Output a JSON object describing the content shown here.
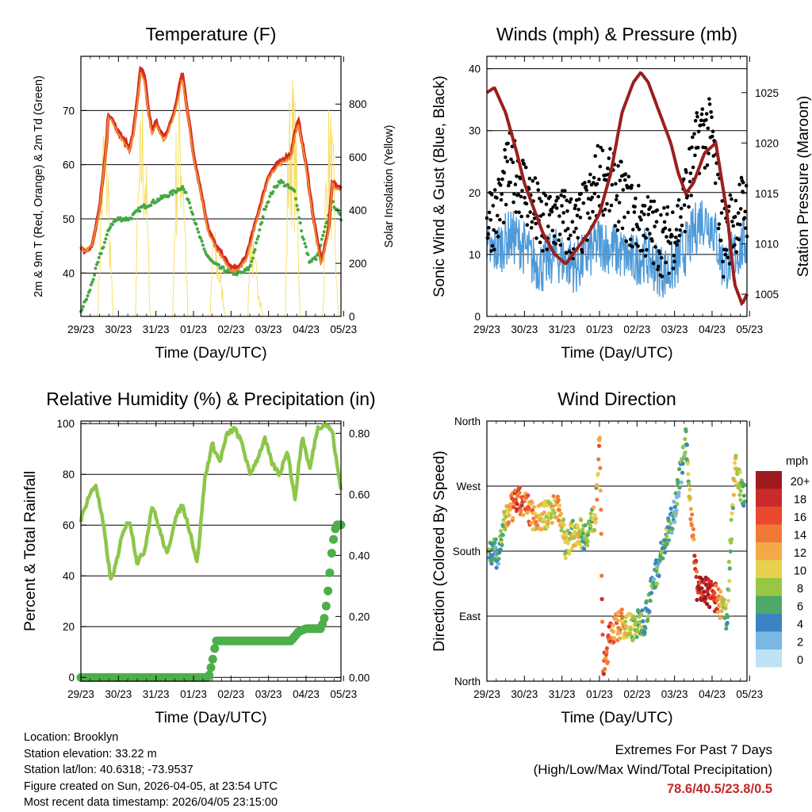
{
  "chart_data": [
    {
      "type": "line",
      "title": "Temperature (F)",
      "xlabel": "Time (Day/UTC)",
      "ylabel": "2m & 9m T (Red, Orange) & 2m Td (Green)",
      "ylabel_right": "Solar Insolation (Yellow)",
      "x_ticks": [
        "29/23",
        "30/23",
        "31/23",
        "01/23",
        "02/23",
        "03/23",
        "04/23",
        "05/23"
      ],
      "xlim": [
        0,
        6.93
      ],
      "ylim": [
        32,
        80
      ],
      "y_ticks": [
        40,
        50,
        60,
        70
      ],
      "ylim_right": [
        0,
        980
      ],
      "y_ticks_right": [
        0,
        200,
        400,
        600,
        800
      ],
      "series": [
        {
          "name": "2m T",
          "color": "#d42a20",
          "x": [
            0,
            0.1,
            0.3,
            0.5,
            0.7,
            0.72,
            0.8,
            1.0,
            1.2,
            1.3,
            1.4,
            1.6,
            1.7,
            1.8,
            1.9,
            2.0,
            2.2,
            2.3,
            2.5,
            2.7,
            2.8,
            3.0,
            3.2,
            3.4,
            3.6,
            3.8,
            4.0,
            4.2,
            4.4,
            4.6,
            4.8,
            5.0,
            5.2,
            5.4,
            5.6,
            5.7,
            5.8,
            6.0,
            6.2,
            6.4,
            6.6,
            6.7,
            6.8,
            6.93
          ],
          "values": [
            45,
            44,
            45,
            52,
            65,
            69,
            69,
            66,
            64,
            63,
            66,
            78,
            76,
            70,
            66,
            68,
            65,
            66,
            70,
            77,
            72,
            62,
            55,
            48,
            45,
            43,
            41,
            41,
            43,
            48,
            53,
            58,
            60,
            61,
            62,
            66,
            68,
            60,
            50,
            42,
            48,
            57,
            56,
            56
          ]
        },
        {
          "name": "9m T",
          "color": "#f28a30",
          "x": [
            0,
            0.1,
            0.3,
            0.5,
            0.7,
            0.72,
            0.8,
            1.0,
            1.2,
            1.3,
            1.4,
            1.6,
            1.7,
            1.8,
            1.9,
            2.0,
            2.2,
            2.3,
            2.5,
            2.7,
            2.8,
            3.0,
            3.2,
            3.4,
            3.6,
            3.8,
            4.0,
            4.2,
            4.4,
            4.6,
            4.8,
            5.0,
            5.2,
            5.4,
            5.6,
            5.7,
            5.8,
            6.0,
            6.2,
            6.4,
            6.6,
            6.7,
            6.8,
            6.93
          ],
          "values": [
            45,
            44,
            45,
            52,
            64.5,
            68.5,
            68.5,
            65.5,
            63.5,
            62.5,
            65.5,
            77,
            75,
            69.5,
            65.5,
            67.5,
            64.5,
            65.5,
            69.5,
            76,
            71.5,
            61.5,
            54.5,
            47.5,
            44.5,
            42.5,
            40.5,
            40.5,
            42.5,
            47.5,
            52.5,
            57.5,
            59.5,
            60.5,
            61.5,
            65.5,
            67.5,
            59.5,
            49.5,
            41.5,
            47.5,
            56.5,
            55.5,
            55.5
          ]
        },
        {
          "name": "2m Td",
          "color": "#44a844",
          "x": [
            0,
            0.2,
            0.5,
            0.8,
            1.0,
            1.3,
            1.6,
            1.9,
            2.2,
            2.5,
            2.7,
            2.9,
            3.1,
            3.3,
            3.5,
            3.7,
            4.0,
            4.3,
            4.5,
            4.7,
            4.9,
            5.1,
            5.3,
            5.5,
            5.7,
            5.9,
            6.1,
            6.3,
            6.5,
            6.7,
            6.8,
            6.93
          ],
          "values": [
            33,
            36,
            43,
            49,
            50,
            50,
            52,
            53,
            54,
            55,
            56,
            53,
            48,
            44,
            42,
            41,
            40,
            40,
            41,
            46,
            52,
            55,
            57,
            56,
            55,
            47,
            42,
            43,
            48,
            53,
            52,
            50
          ]
        },
        {
          "name": "Solar Insolation",
          "color": "#f7dd60",
          "axis": "right",
          "x": [
            0,
            0.45,
            0.55,
            0.62,
            0.72,
            0.85,
            1.45,
            1.52,
            1.62,
            1.72,
            1.85,
            2.45,
            2.52,
            2.62,
            2.72,
            2.85,
            3.45,
            3.52,
            3.62,
            3.72,
            3.85,
            4.45,
            4.52,
            4.62,
            4.72,
            4.85,
            5.45,
            5.52,
            5.62,
            5.72,
            5.85,
            6.45,
            6.52,
            6.62,
            6.72,
            6.85,
            6.93
          ],
          "values": [
            0,
            0,
            600,
            880,
            700,
            0,
            0,
            550,
            900,
            780,
            0,
            0,
            700,
            930,
            820,
            0,
            0,
            400,
            280,
            200,
            0,
            0,
            450,
            250,
            180,
            0,
            0,
            800,
            960,
            850,
            0,
            0,
            600,
            870,
            700,
            0,
            0
          ]
        }
      ]
    },
    {
      "type": "line",
      "title": "Winds (mph) & Pressure (mb)",
      "xlabel": "Time (Day/UTC)",
      "ylabel": "Sonic Wind & Gust (Blue, Black)",
      "ylabel_right": "Station Pressure (Maroon)",
      "x_ticks": [
        "29/23",
        "30/23",
        "31/23",
        "01/23",
        "02/23",
        "03/23",
        "04/23",
        "05/23"
      ],
      "xlim": [
        0,
        6.93
      ],
      "ylim": [
        0,
        42
      ],
      "y_ticks": [
        0,
        10,
        20,
        30,
        40
      ],
      "ylim_right": [
        1002.8,
        1028.6
      ],
      "y_ticks_right": [
        1005,
        1010,
        1015,
        1020,
        1025
      ],
      "series": [
        {
          "name": "Sonic Wind",
          "color": "#4f9ad8",
          "x": [
            0,
            0.3,
            0.6,
            0.9,
            1.2,
            1.5,
            1.8,
            2.1,
            2.4,
            2.7,
            3.0,
            3.3,
            3.6,
            3.9,
            4.2,
            4.5,
            4.8,
            5.1,
            5.4,
            5.7,
            6.0,
            6.3,
            6.6,
            6.93
          ],
          "values": [
            10,
            11,
            13,
            12,
            9,
            8,
            10,
            9,
            8,
            10,
            12,
            11,
            10,
            9,
            10,
            8,
            7,
            9,
            12,
            16,
            15,
            8,
            10,
            12
          ]
        },
        {
          "name": "Gust",
          "color": "#000000",
          "x": [
            0,
            0.3,
            0.6,
            0.9,
            1.2,
            1.5,
            1.8,
            2.1,
            2.4,
            2.7,
            3.0,
            3.3,
            3.6,
            3.9,
            4.2,
            4.5,
            4.8,
            5.1,
            5.4,
            5.7,
            6.0,
            6.3,
            6.6,
            6.93
          ],
          "values": [
            16,
            17,
            24,
            22,
            18,
            14,
            16,
            15,
            14,
            17,
            23,
            21,
            19,
            16,
            15,
            13,
            12,
            15,
            22,
            30,
            29,
            12,
            16,
            18
          ]
        },
        {
          "name": "Station Pressure",
          "color": "#9b1f1f",
          "axis": "right",
          "x": [
            0,
            0.2,
            0.5,
            0.8,
            1.0,
            1.2,
            1.5,
            1.8,
            2.1,
            2.4,
            2.7,
            3.0,
            3.3,
            3.6,
            3.9,
            4.1,
            4.3,
            4.6,
            4.9,
            5.1,
            5.3,
            5.5,
            5.8,
            6.1,
            6.4,
            6.6,
            6.8,
            6.93
          ],
          "values": [
            1025,
            1025.5,
            1023,
            1019,
            1016,
            1014,
            1011,
            1009,
            1008,
            1009.5,
            1011,
            1013,
            1017,
            1023,
            1026,
            1027,
            1026,
            1023,
            1020,
            1017,
            1015,
            1016,
            1019,
            1020,
            1013,
            1006,
            1004,
            1005
          ]
        }
      ]
    },
    {
      "type": "line",
      "title": "Relative Humidity (%) & Precipitation (in)",
      "xlabel": "Time (Day/UTC)",
      "ylabel": "Percent & Total Rainfall",
      "x_ticks": [
        "29/23",
        "30/23",
        "31/23",
        "01/23",
        "02/23",
        "03/23",
        "04/23",
        "05/23"
      ],
      "xlim": [
        0,
        6.93
      ],
      "ylim": [
        -1.5,
        101
      ],
      "y_ticks": [
        0,
        20,
        40,
        60,
        80,
        100
      ],
      "ylim_right": [
        -0.012,
        0.84
      ],
      "y_ticks_right": [
        "0.00",
        "0.20",
        "0.40",
        "0.60",
        "0.80"
      ],
      "series": [
        {
          "name": "Relative Humidity",
          "color": "#8dc64a",
          "x": [
            0,
            0.2,
            0.4,
            0.6,
            0.8,
            1.0,
            1.1,
            1.3,
            1.5,
            1.7,
            1.9,
            2.1,
            2.3,
            2.5,
            2.7,
            2.9,
            3.1,
            3.3,
            3.5,
            3.7,
            3.9,
            4.1,
            4.3,
            4.5,
            4.7,
            4.9,
            5.1,
            5.3,
            5.5,
            5.7,
            5.9,
            6.1,
            6.3,
            6.5,
            6.7,
            6.8,
            6.93
          ],
          "values": [
            62,
            71,
            76,
            60,
            38,
            48,
            57,
            62,
            45,
            50,
            68,
            58,
            48,
            62,
            68,
            58,
            45,
            78,
            92,
            85,
            96,
            98,
            92,
            80,
            86,
            94,
            84,
            80,
            90,
            70,
            95,
            82,
            98,
            100,
            97,
            86,
            74
          ]
        },
        {
          "name": "Total Precipitation",
          "color": "#4caf48",
          "axis": "right",
          "x": [
            0,
            3.4,
            3.5,
            3.6,
            4.8,
            5.0,
            5.2,
            5.6,
            5.8,
            6.0,
            6.4,
            6.5,
            6.6,
            6.7,
            6.8,
            6.93
          ],
          "values": [
            0,
            0,
            0.05,
            0.12,
            0.12,
            0.12,
            0.12,
            0.12,
            0.15,
            0.16,
            0.16,
            0.2,
            0.3,
            0.43,
            0.5,
            0.5
          ]
        }
      ]
    },
    {
      "type": "scatter",
      "title": "Wind Direction",
      "xlabel": "Time (Day/UTC)",
      "ylabel": "Direction (Colored By Speed)",
      "x_ticks": [
        "29/23",
        "30/23",
        "31/23",
        "01/23",
        "02/23",
        "03/23",
        "04/23",
        "05/23"
      ],
      "xlim": [
        0,
        6.93
      ],
      "y_ticks": [
        "North",
        "East",
        "South",
        "West",
        "North"
      ],
      "ylim": [
        0,
        360
      ],
      "colorbar_title": "mph",
      "colorbar_labels": [
        "20+",
        "18",
        "16",
        "14",
        "12",
        "10",
        "8",
        "6",
        "4",
        "2",
        "0"
      ],
      "colorbar_colors": [
        "#9e1a1e",
        "#c92a2a",
        "#e8492f",
        "#f07a35",
        "#f5a946",
        "#e5d14e",
        "#9ac646",
        "#4ea86a",
        "#3a84c4",
        "#7ab7e3",
        "#bfe2f5"
      ],
      "points": {
        "x": [
          0.1,
          0.3,
          0.5,
          0.8,
          1.0,
          1.3,
          1.6,
          1.9,
          2.1,
          2.4,
          2.6,
          2.9,
          3.0,
          3.1,
          3.3,
          3.6,
          3.9,
          4.2,
          4.5,
          4.8,
          5.0,
          5.3,
          5.6,
          5.8,
          6.1,
          6.4,
          6.6,
          6.8,
          6.9
        ],
        "dir": [
          180,
          175,
          225,
          250,
          245,
          225,
          230,
          245,
          190,
          210,
          200,
          230,
          350,
          10,
          70,
          80,
          75,
          85,
          150,
          200,
          240,
          330,
          130,
          125,
          115,
          90,
          300,
          260,
          250
        ],
        "speed": [
          6,
          5,
          10,
          16,
          14,
          12,
          10,
          12,
          8,
          10,
          6,
          9,
          14,
          16,
          15,
          12,
          8,
          6,
          5,
          7,
          4,
          6,
          18,
          20,
          16,
          6,
          10,
          8,
          6
        ]
      }
    }
  ],
  "info": {
    "location": "Location: Brooklyn",
    "elevation": "Station elevation: 33.22 m",
    "latlon": "Station lat/lon: 40.6318; -73.9537",
    "created": "Figure created on Sun, 2026-04-05, at 23:54 UTC",
    "timestamp": "Most recent data timestamp: 2026/04/05 23:15:00"
  },
  "extremes": {
    "title": "Extremes For Past 7 Days",
    "subtitle": "(High/Low/Max Wind/Total Precipitation)",
    "values": "78.6/40.5/23.8/0.5"
  }
}
